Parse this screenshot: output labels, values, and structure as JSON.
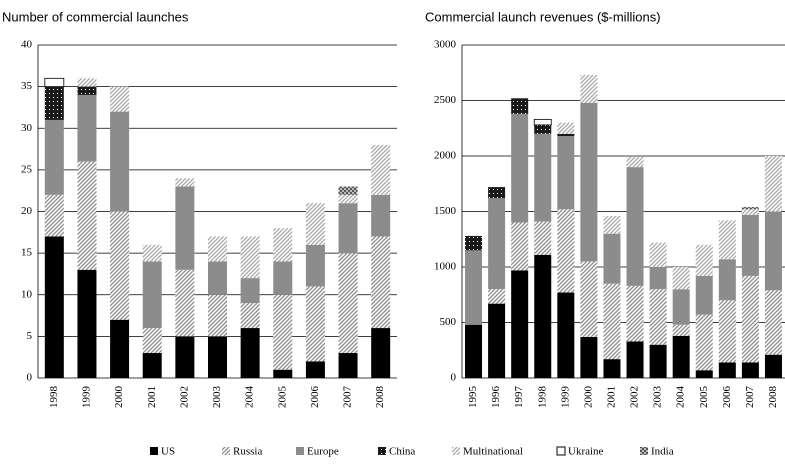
{
  "chart_data": [
    {
      "type": "stacked_bar",
      "title": "Number of commercial launches",
      "categories": [
        "1998",
        "1999",
        "2000",
        "2001",
        "2002",
        "2003",
        "2004",
        "2005",
        "2006",
        "2007",
        "2008"
      ],
      "ylim": [
        0,
        40
      ],
      "yticks": [
        0,
        5,
        10,
        15,
        20,
        25,
        30,
        35,
        40
      ],
      "grid": true,
      "series": [
        {
          "name": "US",
          "color": "#000000",
          "pattern": "solid",
          "values": [
            17,
            13,
            7,
            3,
            5,
            5,
            6,
            1,
            2,
            3,
            6
          ]
        },
        {
          "name": "Russia",
          "color": "#8a8a8a",
          "pattern": "hatch",
          "values": [
            5,
            13,
            13,
            3,
            8,
            5,
            3,
            9,
            9,
            12,
            11
          ]
        },
        {
          "name": "Europe",
          "color": "#8c8c8c",
          "pattern": "solid",
          "values": [
            9,
            8,
            12,
            8,
            10,
            4,
            3,
            4,
            5,
            6,
            5
          ]
        },
        {
          "name": "China",
          "color": "#1a1a1a",
          "pattern": "dots",
          "values": [
            4,
            1,
            0,
            0,
            0,
            0,
            0,
            0,
            0,
            0,
            0
          ]
        },
        {
          "name": "Multinational",
          "color": "#a8a8a8",
          "pattern": "hatch",
          "values": [
            0,
            1,
            3,
            2,
            1,
            3,
            5,
            4,
            5,
            1,
            6
          ]
        },
        {
          "name": "Ukraine",
          "color": "#ffffff",
          "pattern": "outline",
          "values": [
            1,
            0,
            0,
            0,
            0,
            0,
            0,
            0,
            0,
            0,
            0
          ]
        },
        {
          "name": "India",
          "color": "#555555",
          "pattern": "check",
          "values": [
            0,
            0,
            0,
            0,
            0,
            0,
            0,
            0,
            0,
            1,
            0
          ]
        }
      ]
    },
    {
      "type": "stacked_bar",
      "title": "Commercial launch revenues ($-millions)",
      "categories": [
        "1995",
        "1996",
        "1997",
        "1998",
        "1999",
        "2000",
        "2001",
        "2002",
        "2003",
        "2004",
        "2005",
        "2006",
        "2007",
        "2008"
      ],
      "ylim": [
        0,
        3000
      ],
      "yticks": [
        0,
        500,
        1000,
        1500,
        2000,
        2500,
        3000
      ],
      "grid": true,
      "series": [
        {
          "name": "US",
          "color": "#000000",
          "pattern": "solid",
          "values": [
            480,
            670,
            970,
            1110,
            770,
            370,
            170,
            330,
            300,
            380,
            70,
            140,
            140,
            210
          ]
        },
        {
          "name": "Russia",
          "color": "#8a8a8a",
          "pattern": "hatch",
          "values": [
            0,
            130,
            430,
            300,
            750,
            680,
            680,
            500,
            500,
            100,
            500,
            560,
            780,
            580
          ]
        },
        {
          "name": "Europe",
          "color": "#8c8c8c",
          "pattern": "solid",
          "values": [
            670,
            820,
            980,
            790,
            660,
            1430,
            450,
            1070,
            200,
            320,
            350,
            370,
            550,
            710
          ]
        },
        {
          "name": "China",
          "color": "#1a1a1a",
          "pattern": "dots",
          "values": [
            130,
            100,
            140,
            80,
            20,
            0,
            0,
            0,
            0,
            0,
            0,
            0,
            0,
            0
          ]
        },
        {
          "name": "Multinational",
          "color": "#a8a8a8",
          "pattern": "hatch",
          "values": [
            0,
            0,
            0,
            0,
            100,
            250,
            160,
            90,
            220,
            200,
            280,
            350,
            50,
            500
          ]
        },
        {
          "name": "Ukraine",
          "color": "#ffffff",
          "pattern": "outline",
          "values": [
            0,
            0,
            0,
            50,
            0,
            0,
            0,
            0,
            0,
            0,
            0,
            0,
            0,
            0
          ]
        },
        {
          "name": "India",
          "color": "#555555",
          "pattern": "check",
          "values": [
            0,
            0,
            0,
            0,
            0,
            0,
            0,
            0,
            0,
            0,
            0,
            0,
            20,
            0
          ]
        }
      ]
    }
  ]
}
